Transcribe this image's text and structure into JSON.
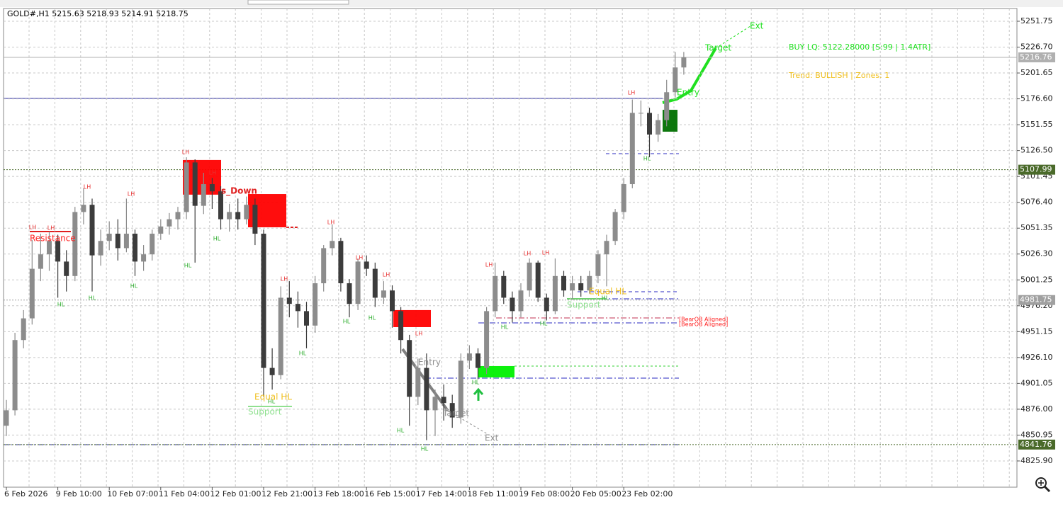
{
  "header": "GOLD#,H1  5215.63 5218.93 5214.91 5218.75",
  "chart_data": {
    "type": "candlestick",
    "categories": [
      "6 Feb 2026",
      null,
      null,
      null,
      null,
      null,
      "9 Feb 10:00",
      null,
      null,
      null,
      null,
      null,
      "10 Feb 07:00",
      null,
      null,
      null,
      null,
      null,
      "11 Feb 04:00",
      null,
      null,
      null,
      null,
      null,
      "12 Feb 01:00",
      null,
      null,
      null,
      null,
      null,
      "12 Feb 21:00",
      null,
      null,
      null,
      null,
      null,
      "13 Feb 18:00",
      null,
      null,
      null,
      null,
      null,
      "16 Feb 15:00",
      null,
      null,
      null,
      null,
      null,
      "17 Feb 14:00",
      null,
      null,
      null,
      null,
      null,
      "18 Feb 11:00",
      null,
      null,
      null,
      null,
      null,
      "19 Feb 08:00",
      null,
      null,
      null,
      null,
      null,
      "20 Feb 05:00",
      null,
      null,
      null,
      null,
      null,
      "23 Feb 02:00",
      null,
      null,
      null,
      null,
      null,
      null,
      null
    ],
    "open": [
      4860,
      4875,
      4943,
      4964,
      5012,
      5026,
      5039,
      5019,
      5005,
      5067,
      5074,
      5025,
      5039,
      5046,
      5032,
      5046,
      5019,
      5026,
      5046,
      5053,
      5060,
      5067,
      5115,
      5073,
      5094,
      5087,
      5060,
      5067,
      5060,
      5074,
      5046,
      4916,
      4909,
      4984,
      4978,
      4971,
      4957,
      4998,
      5032,
      5039,
      4998,
      4978,
      5019,
      5012,
      4984,
      4991,
      4971,
      4943,
      4888,
      4916,
      4875,
      4888,
      4882,
      4868,
      4923,
      4930,
      4916,
      4971,
      5005,
      4984,
      4971,
      4991,
      5018,
      4984,
      4971,
      5005,
      4991,
      4998,
      4991,
      5005,
      5026,
      5039,
      5067,
      5094,
      5163,
      5163,
      5142,
      5156,
      5183,
      5207
    ],
    "high": [
      4885,
      4950,
      4972,
      5040,
      5046,
      5048,
      5045,
      5030,
      5072,
      5090,
      5080,
      5050,
      5058,
      5060,
      5080,
      5050,
      5035,
      5050,
      5060,
      5066,
      5072,
      5120,
      5118,
      5105,
      5100,
      5092,
      5075,
      5080,
      5082,
      5080,
      5050,
      4935,
      4995,
      5000,
      4990,
      4980,
      5005,
      5035,
      5055,
      5042,
      5002,
      5022,
      5025,
      5018,
      5000,
      4996,
      4975,
      4948,
      4925,
      4930,
      4895,
      4900,
      4890,
      4930,
      4938,
      4935,
      4975,
      5018,
      5010,
      4990,
      4998,
      5022,
      5020,
      4988,
      5022,
      5010,
      5005,
      5005,
      5010,
      5030,
      5045,
      5070,
      5100,
      5176,
      5175,
      5168,
      5162,
      5195,
      5222,
      5222
    ],
    "low": [
      4850,
      4870,
      4935,
      4958,
      5000,
      5010,
      4984,
      4990,
      5000,
      5055,
      4990,
      5015,
      5030,
      5020,
      5028,
      5005,
      5010,
      5020,
      5040,
      5045,
      5050,
      5060,
      5018,
      5065,
      5070,
      5050,
      5048,
      5050,
      5055,
      5035,
      4888,
      4895,
      4905,
      4965,
      4955,
      4935,
      4950,
      4990,
      5025,
      4990,
      4965,
      4972,
      5005,
      4975,
      4978,
      4955,
      4930,
      4860,
      4880,
      4846,
      4850,
      4865,
      4858,
      4862,
      4915,
      4905,
      4910,
      4965,
      4978,
      4960,
      4965,
      4985,
      4980,
      4962,
      4968,
      4985,
      4982,
      4985,
      4988,
      4998,
      4995,
      5035,
      5060,
      5090,
      5150,
      5120,
      5135,
      5150,
      5178,
      5200
    ],
    "close": [
      4875,
      4943,
      4964,
      5012,
      5026,
      5039,
      5019,
      5005,
      5067,
      5074,
      5025,
      5039,
      5046,
      5032,
      5046,
      5019,
      5026,
      5046,
      5053,
      5060,
      5067,
      5115,
      5073,
      5094,
      5087,
      5060,
      5067,
      5060,
      5074,
      5046,
      4916,
      4909,
      4984,
      4978,
      4971,
      4957,
      4998,
      5032,
      5039,
      4998,
      4978,
      5019,
      5012,
      4984,
      4991,
      4971,
      4943,
      4888,
      4916,
      4875,
      4888,
      4882,
      4868,
      4923,
      4930,
      4916,
      4971,
      5005,
      4984,
      4971,
      4991,
      5018,
      4984,
      4971,
      5005,
      4991,
      4998,
      4991,
      5005,
      5026,
      5039,
      5067,
      5094,
      5163,
      5163,
      5142,
      5156,
      5183,
      5207,
      5216.76
    ],
    "up_color": "#8c8c8c",
    "down_color": "#3c3c3c",
    "ylim": [
      4800.5,
      5264.1
    ],
    "yticks": [
      5251.75,
      {
        "value": 5226.7,
        "label": "5226.70"
      },
      5201.65,
      {
        "value": 5176.6,
        "label": "5176.60"
      },
      5151.55,
      {
        "value": 5126.5,
        "label": "5126.50"
      },
      5101.45,
      {
        "value": 5076.4,
        "label": "5076.40"
      },
      5051.35,
      {
        "value": 5026.3,
        "label": "5026.30"
      },
      5001.25,
      {
        "value": 4976.2,
        "label": "4976.20"
      },
      4951.15,
      {
        "value": 4926.1,
        "label": "4926.10"
      },
      4901.05,
      {
        "value": 4876,
        "label": "4876.00"
      },
      4850.95,
      {
        "value": 4825.9,
        "label": "4825.90"
      }
    ],
    "grid": true,
    "price_lines": [
      {
        "value": 5216.76,
        "color": "#b0b0b0"
      },
      {
        "value": 5107.99,
        "color": "#4a6a2a"
      },
      {
        "value": 4981.75,
        "color": "#a0a0a0"
      },
      {
        "value": 4841.76,
        "color": "#4a6a2a"
      }
    ],
    "zones": [
      {
        "top": 5117.4,
        "bottom": 5083.8,
        "color": "#ff0000"
      },
      {
        "top": 5084.4,
        "bottom": 5052.2,
        "color": "#ff0000"
      },
      {
        "top": 4972,
        "bottom": 4955.5,
        "color": "#ff0000"
      },
      {
        "top": 4917.8,
        "bottom": 4906.8,
        "color": "#00f000"
      },
      {
        "top": 5166,
        "bottom": 5144.8,
        "color": "#007000"
      }
    ],
    "swing_labels": [
      {
        "text": "LH",
        "color": "#e83030"
      },
      {
        "text": "LH",
        "color": "#e83030"
      },
      {
        "text": "LH",
        "color": "#e83030"
      },
      {
        "text": "LH",
        "color": "#e83030"
      },
      {
        "text": "LH",
        "color": "#e83030"
      },
      {
        "text": "LH",
        "color": "#e83030"
      },
      {
        "text": "HL",
        "color": "#2eae2e"
      },
      {
        "text": "HL",
        "color": "#2eae2e"
      },
      {
        "text": "HL",
        "color": "#2eae2e"
      },
      {
        "text": "HL",
        "color": "#2eae2e"
      },
      {
        "text": "HL",
        "color": "#2eae2e"
      },
      {
        "text": "LH",
        "color": "#e83030"
      },
      {
        "text": "LH",
        "color": "#e83030"
      },
      {
        "text": "LH",
        "color": "#e83030"
      },
      {
        "text": "LH",
        "color": "#e83030"
      },
      {
        "text": "LH",
        "color": "#e83030"
      },
      {
        "text": "HL",
        "color": "#2eae2e"
      },
      {
        "text": "HL",
        "color": "#2eae2e"
      },
      {
        "text": "HL",
        "color": "#2eae2e"
      },
      {
        "text": "HL",
        "color": "#2eae2e"
      },
      {
        "text": "HL",
        "color": "#2eae2e"
      },
      {
        "text": "HL",
        "color": "#2eae2e"
      },
      {
        "text": "HL",
        "color": "#2eae2e"
      },
      {
        "text": "LH",
        "color": "#e83030"
      },
      {
        "text": "LH",
        "color": "#e83030"
      },
      {
        "text": "LH",
        "color": "#e83030"
      },
      {
        "text": "HL",
        "color": "#2eae2e"
      },
      {
        "text": "HL",
        "color": "#2eae2e"
      },
      {
        "text": "HL",
        "color": "#2eae2e"
      },
      {
        "text": "LH",
        "color": "#e83030"
      },
      {
        "text": "HL",
        "color": "#2eae2e"
      }
    ],
    "annotations": [
      {
        "text": "Resistance",
        "color": "#ff2020"
      },
      {
        "text": "s_Down",
        "color": "#e02020"
      },
      {
        "text": "Equal HL",
        "color": "#f0c020"
      },
      {
        "text": "Support",
        "color": "#90e090"
      },
      {
        "text": "Entry",
        "color": "#909090"
      },
      {
        "text": "Target",
        "color": "#909090"
      },
      {
        "text": "Ext",
        "color": "#909090"
      },
      {
        "text": "Equal HL",
        "color": "#f0c020"
      },
      {
        "text": "Support",
        "color": "#90e090"
      },
      {
        "text": "[BearOB Aligned]",
        "color": "#ff2020"
      },
      {
        "text": "[BearOB Aligned]",
        "color": "#ff2020"
      },
      {
        "text": "Entry",
        "color": "#20e020"
      },
      {
        "text": "Target",
        "color": "#20e020"
      },
      {
        "text": "Ext",
        "color": "#20e020"
      },
      {
        "text": "BUY LQ: 5122.28000 [S:99 | 1.4ATR]",
        "color": "#20e020"
      },
      {
        "text": "Trend: BULLISH | Zones: 1",
        "color": "#f0c020"
      }
    ]
  }
}
